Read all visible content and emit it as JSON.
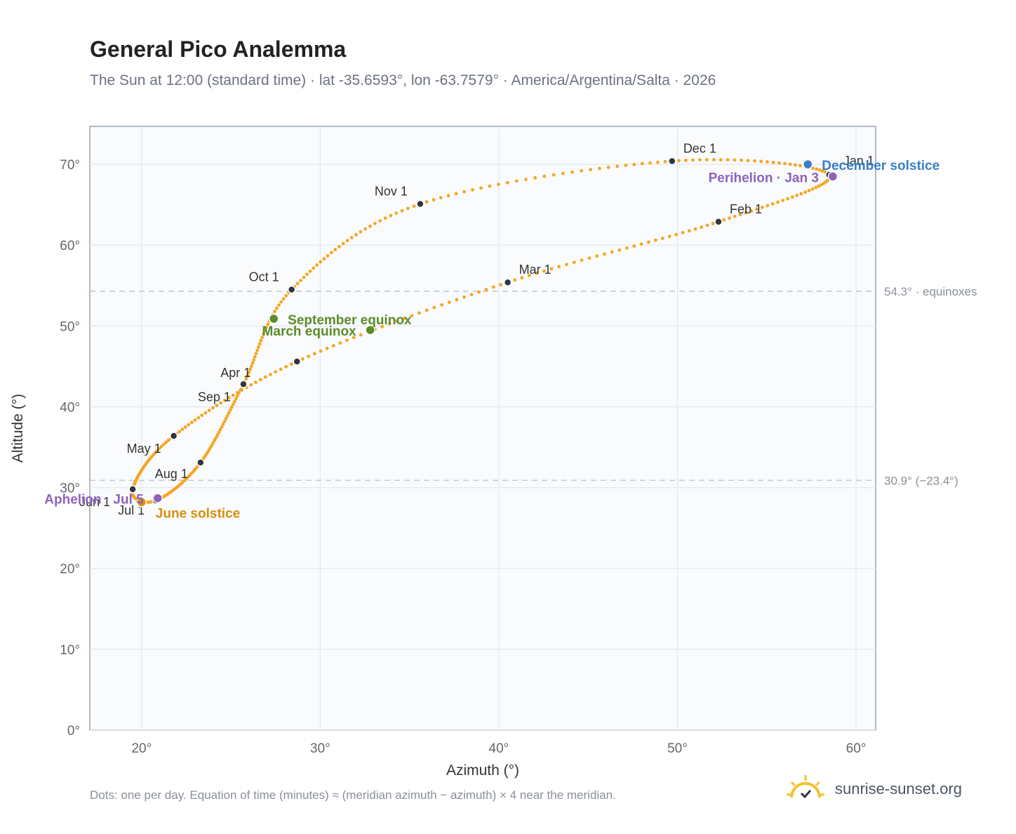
{
  "header": {
    "title": "General Pico Analemma",
    "subtitle": "The Sun at 12:00 (standard time) · lat -35.6593°, lon -63.7579° · America/Argentina/Salta · 2026"
  },
  "footer": {
    "note": "Dots: one per day. Equation of time (minutes) ≈ (meridian azimuth − azimuth) × 4 near the meridian.",
    "brand": "sunrise-sunset.org"
  },
  "colors": {
    "path": "#f5a623",
    "month_marker": "#2f3640",
    "equinox": "#5b8c2a",
    "june_solstice": "#d4900a",
    "december_solstice": "#3b7dc4",
    "apsis": "#8e63b8",
    "plot_bg": "#f9fbfd",
    "grid": "#e3e8ee",
    "ref_line": "#c4cad3"
  },
  "chart_data": {
    "type": "scatter",
    "xlabel": "Azimuth (°)",
    "ylabel": "Altitude (°)",
    "xlim": [
      17.1,
      61.1
    ],
    "ylim": [
      0,
      74.7
    ],
    "x_ticks": [
      20,
      30,
      40,
      50,
      60
    ],
    "x_tick_labels": [
      "20°",
      "30°",
      "40°",
      "50°",
      "60°"
    ],
    "y_ticks": [
      0,
      10,
      20,
      30,
      40,
      50,
      60,
      70
    ],
    "y_tick_labels": [
      "0°",
      "10°",
      "20°",
      "30°",
      "40°",
      "50°",
      "60°",
      "70°"
    ],
    "grid": true,
    "reference_lines": [
      {
        "y": 54.3,
        "label": "54.3° · equinoxes"
      },
      {
        "y": 30.9,
        "label": "30.9° (−23.4°)"
      }
    ],
    "series": [
      {
        "points": [
          [
            58.5,
            68.7
          ],
          [
            52.3,
            62.9
          ],
          [
            40.5,
            55.4
          ],
          [
            28.7,
            45.6
          ],
          [
            21.8,
            36.4
          ],
          [
            19.5,
            29.8
          ],
          [
            20.8,
            28.4
          ],
          [
            23.3,
            33.1
          ],
          [
            25.7,
            42.8
          ],
          [
            28.4,
            54.5
          ],
          [
            35.6,
            65.1
          ],
          [
            49.7,
            70.4
          ],
          [
            58.6,
            68.6
          ]
        ]
      }
    ],
    "month_markers": [
      {
        "label": "Jan 1",
        "x": 58.5,
        "y": 68.7
      },
      {
        "label": "Feb 1",
        "x": 52.3,
        "y": 62.9
      },
      {
        "label": "Mar 1",
        "x": 40.5,
        "y": 55.4
      },
      {
        "label": "Apr 1",
        "x": 28.7,
        "y": 45.6
      },
      {
        "label": "May 1",
        "x": 21.8,
        "y": 36.4
      },
      {
        "label": "Jun 1",
        "x": 19.5,
        "y": 29.8
      },
      {
        "label": "Jul 1",
        "x": 20.8,
        "y": 28.4
      },
      {
        "label": "Aug 1",
        "x": 23.3,
        "y": 33.1
      },
      {
        "label": "Sep 1",
        "x": 25.7,
        "y": 42.8
      },
      {
        "label": "Oct 1",
        "x": 28.4,
        "y": 54.5
      },
      {
        "label": "Nov 1",
        "x": 35.6,
        "y": 65.1
      },
      {
        "label": "Dec 1",
        "x": 49.7,
        "y": 70.4
      }
    ],
    "events": [
      {
        "label": "March equinox",
        "x": 32.8,
        "y": 49.5,
        "kind": "equinox"
      },
      {
        "label": "September equinox",
        "x": 27.4,
        "y": 50.9,
        "kind": "equinox"
      },
      {
        "label": "June solstice",
        "x": 20.0,
        "y": 28.2,
        "kind": "june_solstice"
      },
      {
        "label": "December solstice",
        "x": 57.3,
        "y": 70.0,
        "kind": "december_solstice"
      },
      {
        "label": "Perihelion · Jan 3",
        "x": 58.7,
        "y": 68.5,
        "kind": "apsis"
      },
      {
        "label": "Aphelion · Jul 5",
        "x": 20.9,
        "y": 28.7,
        "kind": "apsis"
      }
    ]
  }
}
